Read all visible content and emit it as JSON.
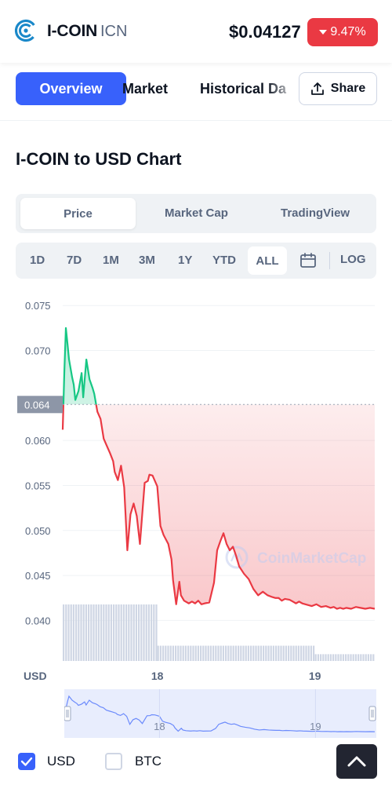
{
  "header": {
    "coin_name": "I-COIN",
    "coin_symbol": "ICN",
    "price": "$0.04127",
    "change": "9.47%",
    "change_direction": "down",
    "change_color": "#ea3943",
    "logo_icon": "coin-logo-icon"
  },
  "tabs": {
    "items": [
      {
        "label": "Overview",
        "active": true
      },
      {
        "label": "Market",
        "active": false
      },
      {
        "label": "Historical Da",
        "active": false
      }
    ],
    "share_label": "Share",
    "share_icon": "upload-share-icon"
  },
  "chart_title": "I-COIN to USD Chart",
  "chart_tabs": [
    {
      "label": "Price",
      "active": true
    },
    {
      "label": "Market Cap",
      "active": false
    },
    {
      "label": "TradingView",
      "active": false
    }
  ],
  "ranges": {
    "items": [
      "1D",
      "7D",
      "1M",
      "3M",
      "1Y",
      "YTD",
      "ALL"
    ],
    "active": "ALL",
    "calendar_icon": "calendar-icon",
    "log_label": "LOG"
  },
  "colors": {
    "accent": "#3861fb",
    "up": "#16c784",
    "down": "#ea3943"
  },
  "chart_data": {
    "type": "line",
    "currency_label": "USD",
    "watermark": "CoinMarketCap",
    "current_price_label": "0.064",
    "baseline": 0.064,
    "y_ticks": [
      "0.075",
      "0.070",
      "0.060",
      "0.055",
      "0.050",
      "0.045",
      "0.040"
    ],
    "ylim": [
      0.0355,
      0.0765
    ],
    "x_ticks": [
      {
        "label": "18",
        "x": 17.6
      },
      {
        "label": "19",
        "x": 18.6
      }
    ],
    "xlim": [
      17.0,
      18.98
    ],
    "grid": true,
    "x": [
      17.0,
      17.01,
      17.02,
      17.03,
      17.04,
      17.06,
      17.07,
      17.08,
      17.1,
      17.12,
      17.13,
      17.15,
      17.17,
      17.19,
      17.2,
      17.22,
      17.24,
      17.26,
      17.28,
      17.3,
      17.32,
      17.33,
      17.35,
      17.37,
      17.39,
      17.41,
      17.43,
      17.45,
      17.47,
      17.49,
      17.52,
      17.54,
      17.55,
      17.57,
      17.6,
      17.62,
      17.64,
      17.67,
      17.69,
      17.7,
      17.72,
      17.74,
      17.75,
      17.77,
      17.8,
      17.82,
      17.84,
      17.86,
      17.88,
      17.9,
      17.93,
      17.96,
      17.98,
      18.0,
      18.02,
      18.04,
      18.06,
      18.08,
      18.1,
      18.12,
      18.15,
      18.18,
      18.21,
      18.24,
      18.27,
      18.3,
      18.33,
      18.35,
      18.37,
      18.39,
      18.41,
      18.44,
      18.46,
      18.48,
      18.5,
      18.52,
      18.54,
      18.56,
      18.58,
      18.61,
      18.64,
      18.67,
      18.7,
      18.72,
      18.74,
      18.76,
      18.78,
      18.8,
      18.83,
      18.86,
      18.89,
      18.92,
      18.95,
      18.98
    ],
    "values": [
      0.0612,
      0.0675,
      0.0725,
      0.0708,
      0.069,
      0.067,
      0.0662,
      0.0645,
      0.0655,
      0.0675,
      0.0648,
      0.069,
      0.0668,
      0.0658,
      0.0652,
      0.0632,
      0.0624,
      0.0602,
      0.0594,
      0.0586,
      0.0577,
      0.0565,
      0.0556,
      0.0572,
      0.0548,
      0.0478,
      0.0518,
      0.053,
      0.0516,
      0.0485,
      0.0553,
      0.0555,
      0.0562,
      0.0561,
      0.0549,
      0.0505,
      0.0495,
      0.0485,
      0.0468,
      0.0445,
      0.0418,
      0.0443,
      0.0428,
      0.0422,
      0.0419,
      0.0421,
      0.0419,
      0.0422,
      0.0418,
      0.0419,
      0.042,
      0.0442,
      0.0478,
      0.0488,
      0.0497,
      0.0485,
      0.0478,
      0.0482,
      0.0472,
      0.046,
      0.0452,
      0.0446,
      0.0435,
      0.0428,
      0.0432,
      0.0428,
      0.0426,
      0.0425,
      0.0425,
      0.0422,
      0.0424,
      0.0423,
      0.0421,
      0.0419,
      0.0421,
      0.0419,
      0.0418,
      0.0417,
      0.0416,
      0.0418,
      0.0415,
      0.0416,
      0.0414,
      0.0415,
      0.0413,
      0.0414,
      0.0413,
      0.0414,
      0.0413,
      0.0415,
      0.0414,
      0.0413,
      0.0414,
      0.0413
    ],
    "volume_segments": [
      {
        "from": 17.0,
        "to": 17.6,
        "level": 1.0
      },
      {
        "from": 17.6,
        "to": 18.6,
        "level": 0.27
      },
      {
        "from": 18.6,
        "to": 18.98,
        "level": 0.12
      }
    ],
    "navigator_ticks": [
      {
        "label": "18",
        "x": 17.6
      },
      {
        "label": "19",
        "x": 18.6
      }
    ]
  },
  "legend": {
    "usd_label": "USD",
    "usd_checked": true,
    "btc_label": "BTC",
    "btc_checked": false,
    "scroll_top_icon": "chevron-up-icon"
  }
}
